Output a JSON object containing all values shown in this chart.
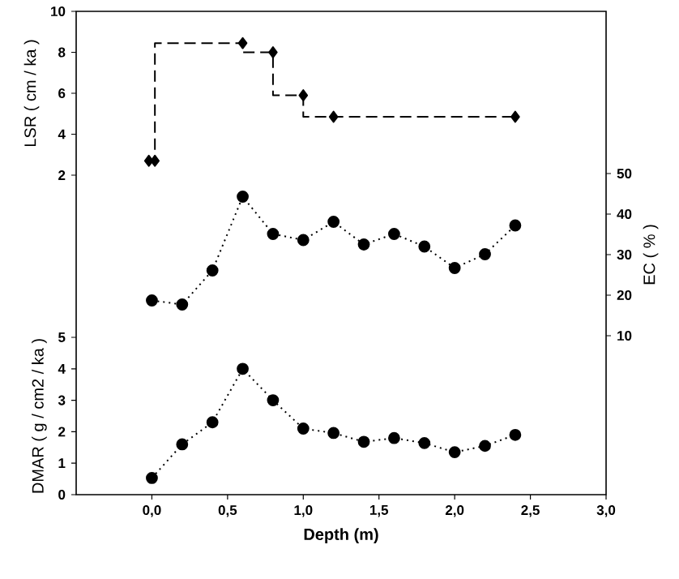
{
  "chart_data": [
    {
      "type": "step",
      "ylabel": "LSR ( cm / ka )",
      "xlim": [
        -0.5,
        3.0
      ],
      "ylim": [
        2,
        10
      ],
      "yticks": [
        2,
        4,
        6,
        8,
        10
      ],
      "tick_labels": "y",
      "marker": "diamond",
      "line_style": "dashed",
      "series": [
        {
          "color": "#000000",
          "x": [
            -0.02,
            0.02,
            0.6,
            0.8,
            1.0,
            1.2,
            2.4
          ],
          "values": [
            2.7,
            2.7,
            8.45,
            8.0,
            5.9,
            4.85,
            4.85
          ]
        }
      ]
    },
    {
      "type": "line",
      "y2label": "EC ( % )",
      "xlim": [
        -0.5,
        3.0
      ],
      "y2lim": [
        10,
        50
      ],
      "y2ticks": [
        10,
        20,
        30,
        40,
        50
      ],
      "tick_labels": "y",
      "marker": "circle",
      "line_style": "dotted",
      "series": [
        {
          "axis": "y2",
          "color": "#000000",
          "x": [
            0.0,
            0.2,
            0.4,
            0.6,
            0.8,
            1.0,
            1.2,
            1.4,
            1.6,
            1.8,
            2.0,
            2.2,
            2.4
          ],
          "values": [
            18.7,
            17.7,
            26.1,
            44.3,
            35.1,
            33.6,
            38.1,
            32.5,
            35.1,
            32.0,
            26.7,
            30.1,
            37.2
          ]
        }
      ]
    },
    {
      "type": "line",
      "xlabel": "Depth (m)",
      "ylabel": "DMAR ( g / cm2 / ka )",
      "xlim": [
        -0.5,
        3.0
      ],
      "xticks": [
        {
          "value": 0,
          "label": "0,0"
        },
        {
          "value": 0.5,
          "label": "0,5"
        },
        {
          "value": 1,
          "label": "1,0"
        },
        {
          "value": 1.5,
          "label": "1,5"
        },
        {
          "value": 2,
          "label": "2,0"
        },
        {
          "value": 2.5,
          "label": "2,5"
        },
        {
          "value": 3,
          "label": "3,0"
        }
      ],
      "ylim": [
        0,
        5
      ],
      "yticks": [
        0,
        1,
        2,
        3,
        4,
        5
      ],
      "marker": "circle",
      "line_style": "dotted",
      "series": [
        {
          "color": "#000000",
          "x": [
            0.0,
            0.2,
            0.4,
            0.6,
            0.8,
            1.0,
            1.2,
            1.4,
            1.6,
            1.8,
            2.0,
            2.2,
            2.4
          ],
          "values": [
            0.53,
            1.6,
            2.3,
            4.0,
            3.0,
            2.1,
            1.96,
            1.68,
            1.8,
            1.64,
            1.35,
            1.55,
            1.9
          ]
        }
      ]
    }
  ]
}
